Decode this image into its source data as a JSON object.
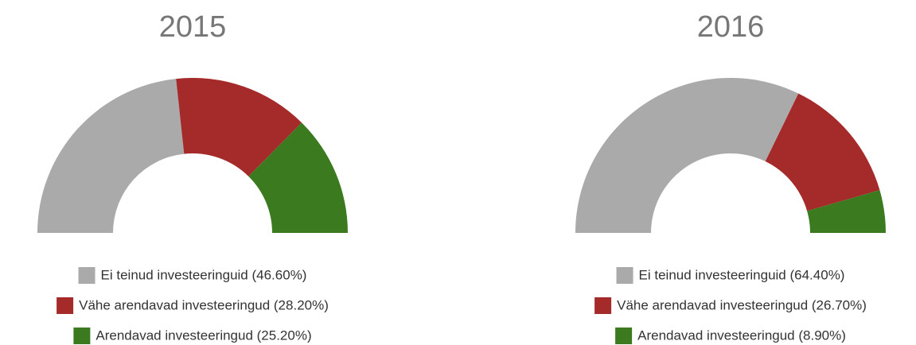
{
  "chart_data": [
    {
      "type": "pie",
      "title": "2015",
      "categories": [
        "Ei teinud investeeringuid (46.60%)",
        "Vähe arendavad investeeringud (28.20%)",
        "Arendavad investeeringud (25.20%)"
      ],
      "values": [
        46.6,
        28.2,
        25.2
      ],
      "colors": [
        "#aaaaaa",
        "#a52a2a",
        "#3b7a1e"
      ]
    },
    {
      "type": "pie",
      "title": "2016",
      "categories": [
        "Ei teinud investeeringuid (64.40%)",
        "Vähe arendavad investeeringud (26.70%)",
        "Arendavad investeeringud (8.90%)"
      ],
      "values": [
        64.4,
        26.7,
        8.9
      ],
      "colors": [
        "#aaaaaa",
        "#a52a2a",
        "#3b7a1e"
      ]
    }
  ]
}
